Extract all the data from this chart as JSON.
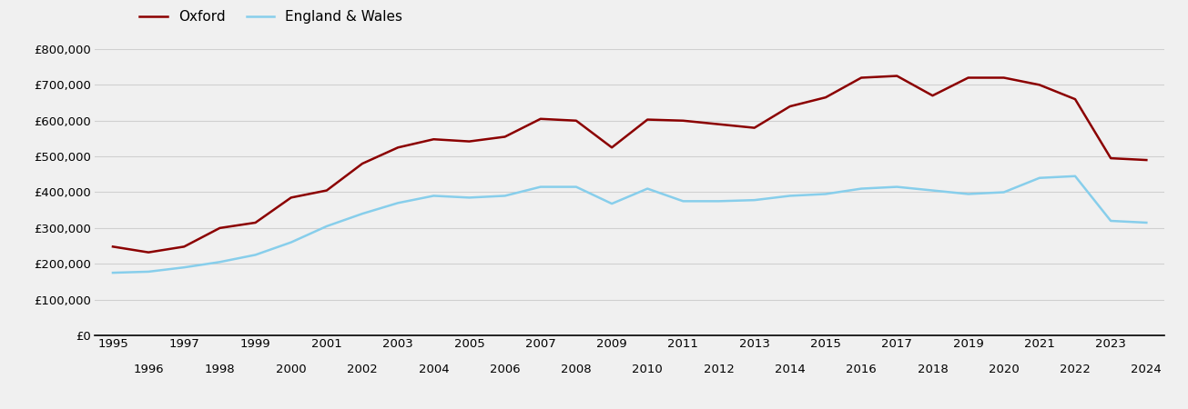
{
  "oxford_years": [
    1995,
    1996,
    1997,
    1998,
    1999,
    2000,
    2001,
    2002,
    2003,
    2004,
    2005,
    2006,
    2007,
    2008,
    2009,
    2010,
    2011,
    2012,
    2013,
    2014,
    2015,
    2016,
    2017,
    2018,
    2019,
    2020,
    2021,
    2022,
    2023,
    2024
  ],
  "oxford_values": [
    248000,
    232000,
    248000,
    300000,
    315000,
    385000,
    405000,
    480000,
    525000,
    548000,
    542000,
    555000,
    605000,
    600000,
    525000,
    603000,
    600000,
    590000,
    580000,
    640000,
    665000,
    720000,
    725000,
    670000,
    720000,
    720000,
    700000,
    660000,
    495000,
    490000
  ],
  "ew_years": [
    1995,
    1996,
    1997,
    1998,
    1999,
    2000,
    2001,
    2002,
    2003,
    2004,
    2005,
    2006,
    2007,
    2008,
    2009,
    2010,
    2011,
    2012,
    2013,
    2014,
    2015,
    2016,
    2017,
    2018,
    2019,
    2020,
    2021,
    2022,
    2023,
    2024
  ],
  "ew_values": [
    175000,
    178000,
    190000,
    205000,
    225000,
    260000,
    305000,
    340000,
    370000,
    390000,
    385000,
    390000,
    415000,
    415000,
    368000,
    410000,
    375000,
    375000,
    378000,
    390000,
    395000,
    410000,
    415000,
    405000,
    395000,
    400000,
    440000,
    445000,
    320000,
    315000
  ],
  "oxford_color": "#8B0000",
  "ew_color": "#87CEEB",
  "oxford_label": "Oxford",
  "ew_label": "England & Wales",
  "ylim": [
    0,
    800000
  ],
  "yticks": [
    0,
    100000,
    200000,
    300000,
    400000,
    500000,
    600000,
    700000,
    800000
  ],
  "ytick_labels": [
    "£0",
    "£100,000",
    "£200,000",
    "£300,000",
    "£400,000",
    "£500,000",
    "£600,000",
    "£700,000",
    "£800,000"
  ],
  "xlim_min": 1994.5,
  "xlim_max": 2024.5,
  "xticks_row1": [
    1995,
    1997,
    1999,
    2001,
    2003,
    2005,
    2007,
    2009,
    2011,
    2013,
    2015,
    2017,
    2019,
    2021,
    2023
  ],
  "xticks_row2": [
    1996,
    1998,
    2000,
    2002,
    2004,
    2006,
    2008,
    2010,
    2012,
    2014,
    2016,
    2018,
    2020,
    2022,
    2024
  ],
  "background_color": "#f0f0f0",
  "grid_color": "#d0d0d0",
  "line_width": 1.8,
  "legend_fontsize": 11,
  "tick_fontsize": 9.5
}
